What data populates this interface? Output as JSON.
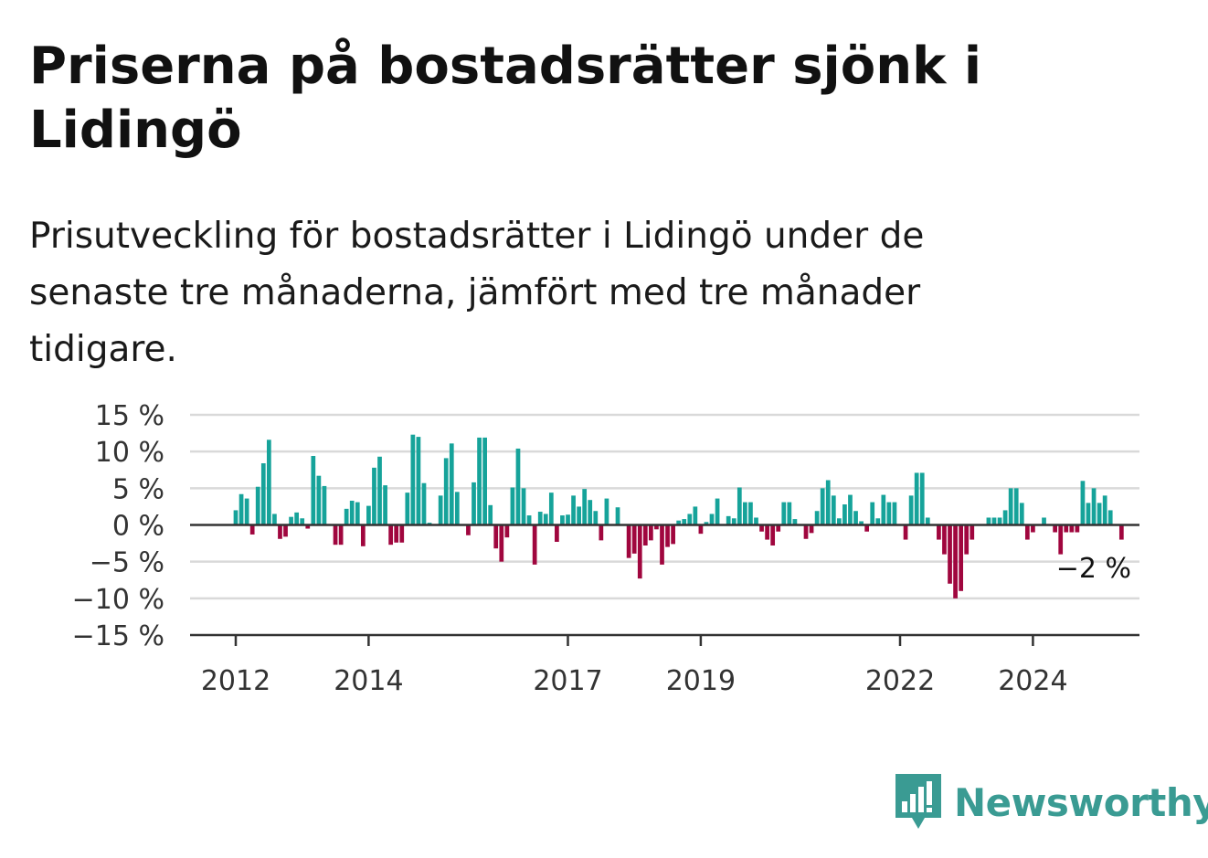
{
  "title": "Priserna på bostadsrätter sjönk i Lidingö",
  "subtitle": "Prisutveckling för bostadsrätter i Lidingö under de senaste tre månaderna, jämfört med tre månader tidigare.",
  "brand": {
    "name": "Newsworthy",
    "color": "#3a9b93"
  },
  "colors": {
    "positive": "#16a39a",
    "negative": "#a0063e",
    "grid": "#d9d9d9",
    "axis": "#333333"
  },
  "chart_data": {
    "type": "bar",
    "ylim": [
      -15,
      15
    ],
    "y_ticks": [
      15,
      10,
      5,
      0,
      -5,
      -10,
      -15
    ],
    "y_tick_labels": [
      "15 %",
      "10 %",
      "5 %",
      "0 %",
      "−5 %",
      "−10 %",
      "−15 %"
    ],
    "x_ticks": [
      2012,
      2014,
      2017,
      2019,
      2022,
      2024
    ],
    "x_tick_labels": [
      "2012",
      "2014",
      "2017",
      "2019",
      "2022",
      "2024"
    ],
    "x_start": "2012-01",
    "last_value_label": "−2 %",
    "series": [
      {
        "values": [
          2,
          4.2,
          3.6,
          -1.3,
          5.2,
          8.4,
          11.6,
          1.5,
          -1.9,
          -1.6,
          1.1,
          1.7,
          0.9,
          -0.5,
          9.4,
          6.7,
          5.3,
          0,
          -2.7,
          -2.7,
          2.2,
          3.3,
          3.1,
          -2.9,
          2.6,
          7.8,
          9.3,
          5.4,
          -2.7,
          -2.4,
          -2.4,
          4.4,
          12.3,
          12,
          5.7,
          0.3,
          0,
          4,
          9.1,
          11.1,
          4.5,
          0,
          -1.4,
          5.8,
          11.9,
          11.9,
          2.7,
          -3.2,
          -5,
          -1.7,
          5.1,
          10.4,
          5,
          1.3,
          -5.4,
          1.8,
          1.5,
          4.4,
          -2.3,
          1.3,
          1.4,
          4,
          2.5,
          4.9,
          3.4,
          1.9,
          -2.1,
          3.6,
          0,
          2.4,
          0,
          -4.5,
          -3.9,
          -7.3,
          -2.8,
          -2.1,
          -0.6,
          -5.4,
          -3,
          -2.6,
          0.6,
          0.8,
          1.5,
          2.5,
          -1.2,
          0.4,
          1.5,
          3.6,
          0,
          1.2,
          0.9,
          5.1,
          3.1,
          3.1,
          1,
          -0.9,
          -2,
          -2.8,
          -0.9,
          3.1,
          3.1,
          0.8,
          0,
          -1.9,
          -1.1,
          1.9,
          5,
          6.1,
          4,
          0.9,
          2.8,
          4.1,
          1.9,
          0.5,
          -0.9,
          3.1,
          0.9,
          4.1,
          3.1,
          3.1,
          0,
          -2,
          4,
          7.1,
          7.1,
          1,
          0,
          -2,
          -4,
          -8,
          -10,
          -9,
          -4,
          -2,
          0,
          0,
          1,
          1,
          1,
          2,
          5,
          5,
          3,
          -2,
          -1,
          0,
          1,
          0,
          -1,
          -4,
          -1,
          -1,
          -1,
          6,
          3,
          5,
          3,
          4,
          2,
          0,
          -2
        ]
      }
    ]
  }
}
